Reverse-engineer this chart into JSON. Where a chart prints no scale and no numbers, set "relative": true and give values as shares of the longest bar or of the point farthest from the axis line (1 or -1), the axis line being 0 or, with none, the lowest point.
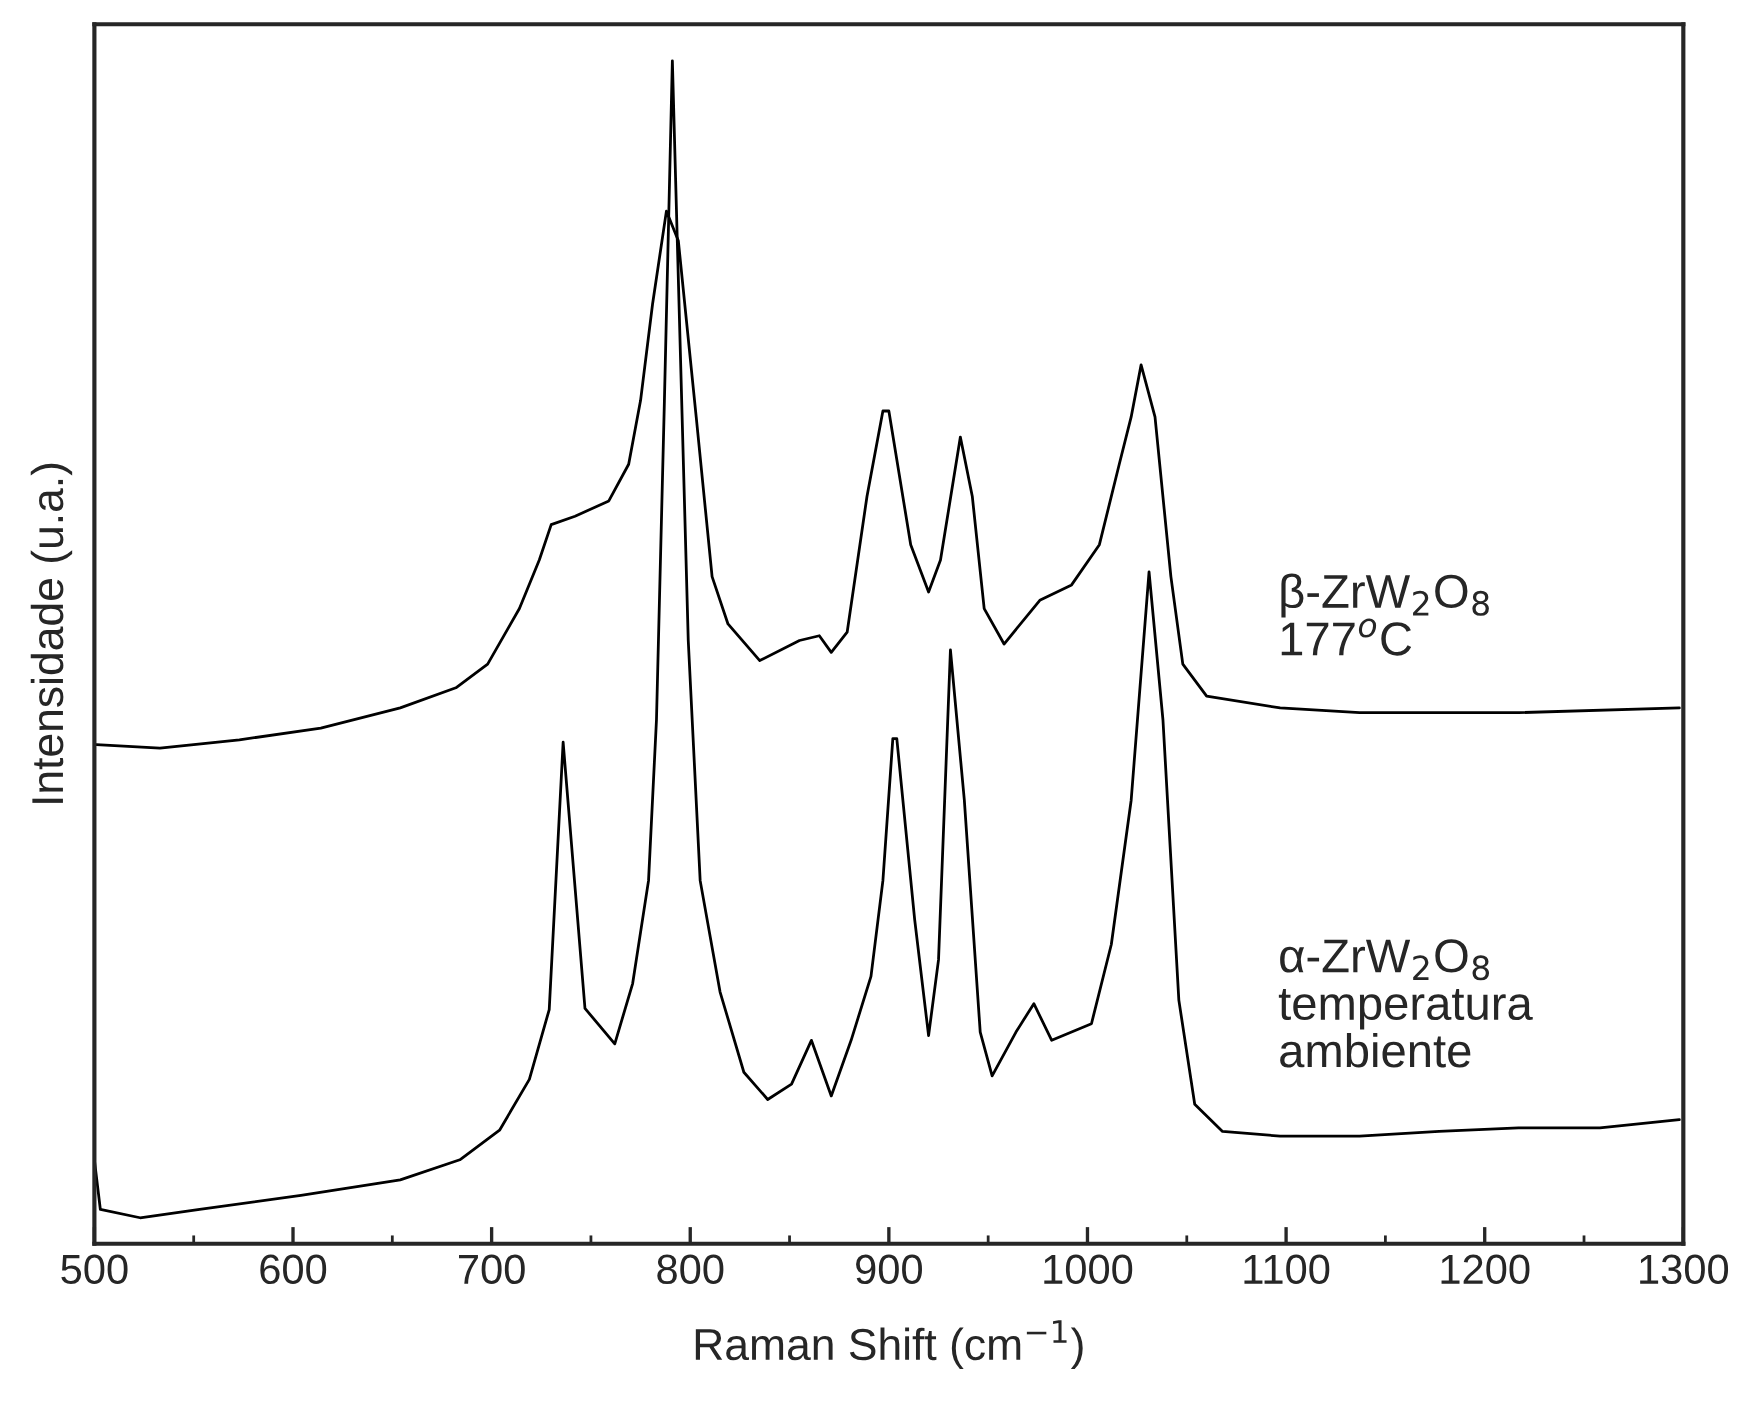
{
  "chart_data": {
    "type": "line",
    "relative": true,
    "xlabel": "Raman Shift (cm$^{−1}$)",
    "ylabel": "Intensidade (u.a.)",
    "xlim": [
      500,
      1300
    ],
    "xticks": [
      500,
      600,
      700,
      800,
      900,
      1000,
      1100,
      1200,
      1300
    ],
    "grid": false,
    "legend": false,
    "marker": "none",
    "line_style": "solid",
    "series": [
      {
        "name": "β-ZrW$_{2}$O$_{8}$\n177$^{o}$C",
        "color": "#000000",
        "x": [
          501,
          533,
          573,
          614,
          654,
          682,
          698,
          714,
          724,
          730,
          742,
          759,
          769,
          775,
          781,
          788,
          794,
          803,
          811,
          819,
          835,
          855,
          865,
          871,
          879,
          889,
          897,
          900,
          911,
          920,
          926,
          936,
          942,
          948,
          958,
          976,
          992,
          1006,
          1016,
          1022,
          1027,
          1034,
          1042,
          1048,
          1060,
          1097,
          1137,
          1177,
          1217,
          1298
        ],
        "values": [
          0.422,
          0.419,
          0.426,
          0.436,
          0.453,
          0.47,
          0.49,
          0.537,
          0.578,
          0.608,
          0.615,
          0.628,
          0.659,
          0.713,
          0.794,
          0.873,
          0.848,
          0.699,
          0.564,
          0.524,
          0.493,
          0.51,
          0.514,
          0.5,
          0.517,
          0.632,
          0.704,
          0.704,
          0.591,
          0.551,
          0.578,
          0.682,
          0.632,
          0.537,
          0.507,
          0.544,
          0.557,
          0.591,
          0.659,
          0.699,
          0.743,
          0.699,
          0.564,
          0.49,
          0.463,
          0.453,
          0.449,
          0.449,
          0.449,
          0.453
        ]
      },
      {
        "name": "α-ZrW$_{2}$O$_{8}$\ntemperatura\nambiente",
        "color": "#000000",
        "x": [
          500,
          503,
          523,
          553,
          604,
          654,
          684,
          704,
          719,
          729,
          736,
          747,
          762,
          771,
          779,
          783,
          787,
          791,
          799,
          805,
          815,
          827,
          839,
          851,
          861,
          871,
          881,
          891,
          897,
          902,
          904,
          913,
          920,
          925,
          931,
          938,
          946,
          952,
          964,
          973,
          982,
          1002,
          1012,
          1022,
          1031,
          1038,
          1046,
          1054,
          1068,
          1097,
          1137,
          1177,
          1217,
          1258,
          1298
        ],
        "values": [
          0.071,
          0.029,
          0.022,
          0.029,
          0.041,
          0.054,
          0.071,
          0.096,
          0.139,
          0.198,
          0.424,
          0.199,
          0.169,
          0.22,
          0.307,
          0.443,
          0.713,
          1.0,
          0.51,
          0.307,
          0.213,
          0.145,
          0.122,
          0.135,
          0.172,
          0.125,
          0.172,
          0.226,
          0.307,
          0.427,
          0.427,
          0.274,
          0.176,
          0.24,
          0.502,
          0.375,
          0.179,
          0.142,
          0.179,
          0.203,
          0.172,
          0.186,
          0.253,
          0.375,
          0.568,
          0.443,
          0.206,
          0.118,
          0.095,
          0.091,
          0.091,
          0.095,
          0.098,
          0.098,
          0.105
        ]
      }
    ]
  }
}
